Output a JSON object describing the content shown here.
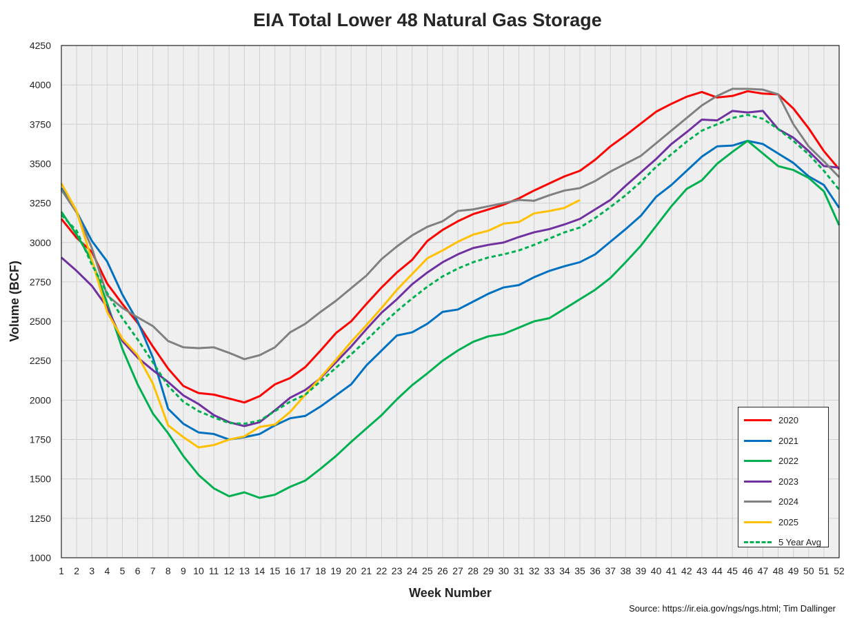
{
  "chart_data": {
    "type": "line",
    "title": "EIA Total Lower 48 Natural Gas Storage",
    "xlabel": "Week Number",
    "ylabel": "Volume (BCF)",
    "xlim": [
      1,
      52
    ],
    "ylim": [
      1000,
      4250
    ],
    "y_ticks": [
      "1000",
      "1250",
      "1500",
      "1750",
      "2000",
      "2250",
      "2500",
      "2750",
      "3000",
      "3250",
      "3500",
      "3750",
      "4000",
      "4250"
    ],
    "x_ticks": [
      "1",
      "2",
      "3",
      "4",
      "5",
      "6",
      "7",
      "8",
      "9",
      "10",
      "11",
      "12",
      "13",
      "14",
      "15",
      "16",
      "17",
      "18",
      "19",
      "20",
      "21",
      "22",
      "23",
      "24",
      "25",
      "26",
      "27",
      "28",
      "29",
      "30",
      "31",
      "32",
      "33",
      "34",
      "35",
      "36",
      "37",
      "38",
      "39",
      "40",
      "41",
      "42",
      "43",
      "44",
      "45",
      "46",
      "47",
      "48",
      "49",
      "50",
      "51",
      "52"
    ],
    "grid": true,
    "legend_position": "bottom-right",
    "source": "Source: https://ir.eia.gov/ngs/ngs.html; Tim Dallinger",
    "series": [
      {
        "name": "2020",
        "color": "#FF0000",
        "dashed": false,
        "values": [
          3150,
          3030,
          2940,
          2740,
          2610,
          2490,
          2340,
          2200,
          2090,
          2045,
          2035,
          2010,
          1985,
          2025,
          2100,
          2140,
          2210,
          2315,
          2425,
          2500,
          2610,
          2715,
          2810,
          2890,
          3010,
          3080,
          3135,
          3180,
          3210,
          3240,
          3280,
          3330,
          3375,
          3420,
          3455,
          3525,
          3610,
          3680,
          3755,
          3830,
          3880,
          3925,
          3955,
          3920,
          3930,
          3960,
          3945,
          3940,
          3850,
          3725,
          3580,
          3465
        ]
      },
      {
        "name": "2021",
        "color": "#0070C0",
        "dashed": false,
        "values": [
          3345,
          3195,
          3010,
          2880,
          2670,
          2500,
          2270,
          1945,
          1850,
          1795,
          1785,
          1750,
          1765,
          1785,
          1840,
          1885,
          1900,
          1960,
          2030,
          2100,
          2220,
          2315,
          2410,
          2430,
          2485,
          2560,
          2575,
          2625,
          2675,
          2715,
          2730,
          2780,
          2820,
          2850,
          2875,
          2925,
          3005,
          3085,
          3170,
          3290,
          3365,
          3455,
          3545,
          3610,
          3615,
          3645,
          3625,
          3565,
          3505,
          3420,
          3365,
          3220
        ]
      },
      {
        "name": "2022",
        "color": "#00B050",
        "dashed": false,
        "values": [
          3195,
          3050,
          2885,
          2615,
          2325,
          2100,
          1915,
          1790,
          1645,
          1525,
          1440,
          1390,
          1415,
          1380,
          1400,
          1450,
          1490,
          1565,
          1645,
          1735,
          1820,
          1905,
          2005,
          2095,
          2170,
          2250,
          2315,
          2370,
          2405,
          2420,
          2460,
          2500,
          2520,
          2580,
          2640,
          2700,
          2775,
          2875,
          2980,
          3105,
          3230,
          3340,
          3395,
          3500,
          3575,
          3645,
          3565,
          3485,
          3460,
          3410,
          3325,
          3110
        ]
      },
      {
        "name": "2023",
        "color": "#7030A0",
        "dashed": false,
        "values": [
          2905,
          2820,
          2725,
          2590,
          2375,
          2270,
          2190,
          2115,
          2030,
          1975,
          1905,
          1860,
          1835,
          1860,
          1935,
          2015,
          2065,
          2140,
          2240,
          2340,
          2450,
          2555,
          2640,
          2735,
          2810,
          2875,
          2925,
          2965,
          2985,
          3000,
          3035,
          3065,
          3085,
          3115,
          3150,
          3210,
          3270,
          3360,
          3445,
          3530,
          3625,
          3700,
          3780,
          3775,
          3835,
          3825,
          3835,
          3720,
          3665,
          3580,
          3485,
          3475
        ]
      },
      {
        "name": "2024",
        "color": "#808080",
        "dashed": false,
        "values": [
          3335,
          3190,
          2965,
          2665,
          2585,
          2525,
          2470,
          2375,
          2335,
          2330,
          2335,
          2300,
          2260,
          2285,
          2335,
          2430,
          2485,
          2560,
          2630,
          2710,
          2790,
          2895,
          2975,
          3045,
          3100,
          3135,
          3200,
          3210,
          3230,
          3250,
          3270,
          3265,
          3300,
          3330,
          3345,
          3390,
          3450,
          3500,
          3550,
          3630,
          3710,
          3790,
          3870,
          3930,
          3975,
          3975,
          3970,
          3940,
          3750,
          3610,
          3515,
          3415
        ]
      },
      {
        "name": "2025",
        "color": "#FFC000",
        "dashed": false,
        "values": [
          3375,
          3200,
          2890,
          2560,
          2390,
          2285,
          2105,
          1840,
          1765,
          1700,
          1715,
          1750,
          1770,
          1830,
          1845,
          1925,
          2035,
          2145,
          2255,
          2370,
          2475,
          2585,
          2700,
          2800,
          2900,
          2950,
          3005,
          3050,
          3075,
          3120,
          3130,
          3185,
          3200,
          3220,
          3270
        ]
      },
      {
        "name": "5 Year Avg",
        "color": "#00B050",
        "dashed": true,
        "values": [
          3175,
          3075,
          2860,
          2680,
          2520,
          2385,
          2240,
          2090,
          1990,
          1930,
          1890,
          1855,
          1850,
          1870,
          1930,
          1990,
          2035,
          2120,
          2205,
          2290,
          2380,
          2475,
          2565,
          2645,
          2720,
          2785,
          2835,
          2875,
          2905,
          2925,
          2950,
          2985,
          3025,
          3065,
          3095,
          3155,
          3225,
          3300,
          3385,
          3480,
          3560,
          3640,
          3710,
          3750,
          3790,
          3810,
          3785,
          3720,
          3645,
          3560,
          3455,
          3335
        ]
      }
    ]
  }
}
